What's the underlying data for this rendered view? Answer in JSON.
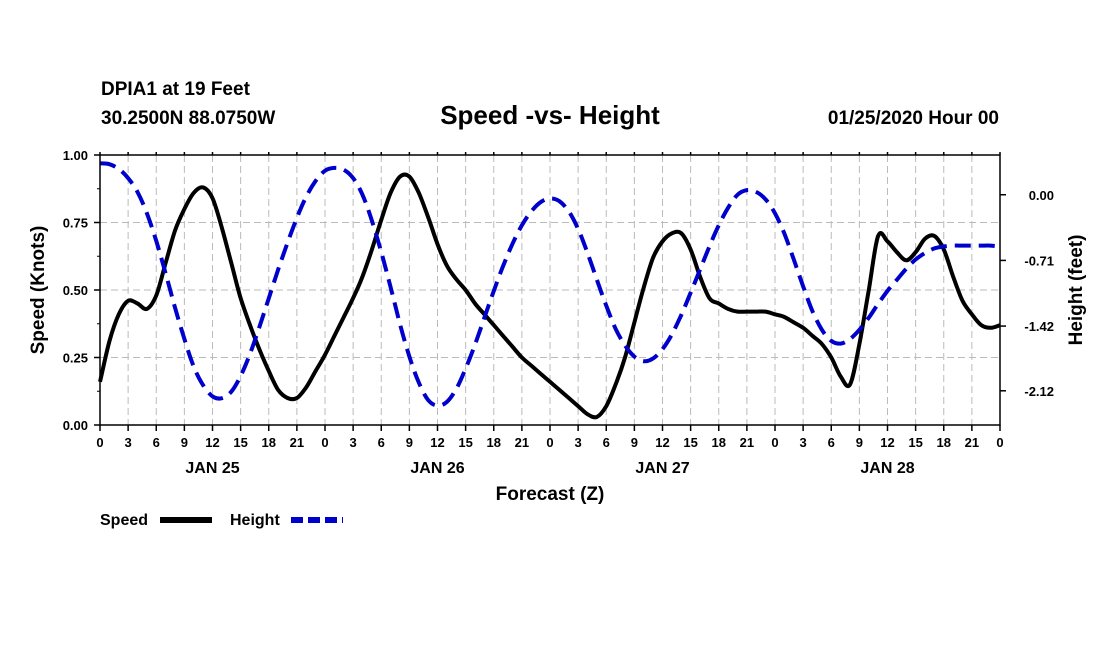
{
  "header": {
    "station": "DPIA1 at 19 Feet",
    "coords": "30.2500N 88.0750W",
    "datetime": "01/25/2020 Hour 00"
  },
  "chart_data": {
    "type": "line",
    "title": "Speed -vs- Height",
    "xlabel": "Forecast (Z)",
    "ylabel": "Speed (Knots)",
    "y2label": "Height (feet)",
    "xlim": [
      0,
      96
    ],
    "ylim": [
      0,
      1.0
    ],
    "y2lim": [
      -2.49,
      0.43
    ],
    "grid": true,
    "x_tick_labels": [
      "0",
      "3",
      "6",
      "9",
      "12",
      "15",
      "18",
      "21",
      "0",
      "3",
      "6",
      "9",
      "12",
      "15",
      "18",
      "21",
      "0",
      "3",
      "6",
      "9",
      "12",
      "15",
      "18",
      "21",
      "0",
      "3",
      "6",
      "9",
      "12",
      "15",
      "18",
      "21",
      "0"
    ],
    "y_ticks": [
      "0.00",
      "0.25",
      "0.50",
      "0.75",
      "1.00"
    ],
    "y2_ticks": [
      "0.00",
      "-0.71",
      "-1.42",
      "-2.12"
    ],
    "day_labels": [
      {
        "label": "JAN 25",
        "x": 12
      },
      {
        "label": "JAN 26",
        "x": 36
      },
      {
        "label": "JAN 27",
        "x": 60
      },
      {
        "label": "JAN 28",
        "x": 84
      }
    ],
    "legend": {
      "speed_label": "Speed",
      "height_label": "Height",
      "position": "bottom-left"
    },
    "series": [
      {
        "name": "Speed",
        "axis": "left",
        "color": "#000000",
        "style": "solid",
        "x": [
          0,
          1,
          2,
          3,
          4,
          5,
          6,
          7,
          8,
          9,
          10,
          11,
          12,
          13,
          14,
          15,
          16,
          17,
          18,
          19,
          20,
          21,
          22,
          23,
          24,
          25,
          26,
          27,
          28,
          29,
          30,
          31,
          32,
          33,
          34,
          35,
          36,
          37,
          38,
          39,
          40,
          41,
          42,
          43,
          44,
          45,
          46,
          47,
          48,
          49,
          50,
          51,
          52,
          53,
          54,
          55,
          56,
          57,
          58,
          59,
          60,
          61,
          62,
          63,
          64,
          65,
          66,
          67,
          68,
          69,
          70,
          71,
          72,
          73,
          74,
          75,
          76,
          77,
          78,
          79,
          80,
          81,
          82,
          83,
          84,
          85,
          86,
          87,
          88,
          89,
          90,
          91,
          92,
          93,
          94,
          95,
          96
        ],
        "y": [
          0.16,
          0.31,
          0.41,
          0.46,
          0.45,
          0.43,
          0.48,
          0.6,
          0.72,
          0.8,
          0.86,
          0.88,
          0.84,
          0.73,
          0.6,
          0.47,
          0.37,
          0.28,
          0.2,
          0.13,
          0.1,
          0.1,
          0.14,
          0.2,
          0.26,
          0.33,
          0.4,
          0.47,
          0.55,
          0.65,
          0.76,
          0.86,
          0.92,
          0.92,
          0.86,
          0.77,
          0.67,
          0.59,
          0.54,
          0.5,
          0.45,
          0.41,
          0.37,
          0.33,
          0.29,
          0.25,
          0.22,
          0.19,
          0.16,
          0.13,
          0.1,
          0.07,
          0.04,
          0.03,
          0.07,
          0.15,
          0.25,
          0.38,
          0.51,
          0.62,
          0.68,
          0.71,
          0.71,
          0.65,
          0.55,
          0.47,
          0.45,
          0.43,
          0.42,
          0.42,
          0.42,
          0.42,
          0.41,
          0.4,
          0.38,
          0.36,
          0.33,
          0.3,
          0.25,
          0.18,
          0.15,
          0.3,
          0.5,
          0.7,
          0.68,
          0.64,
          0.61,
          0.64,
          0.69,
          0.7,
          0.65,
          0.55,
          0.46,
          0.41,
          0.37,
          0.36,
          0.37
        ]
      },
      {
        "name": "Height",
        "axis": "right",
        "color": "#0000cc",
        "style": "dashed",
        "x": [
          0,
          1,
          2,
          3,
          4,
          5,
          6,
          7,
          8,
          9,
          10,
          11,
          12,
          13,
          14,
          15,
          16,
          17,
          18,
          19,
          20,
          21,
          22,
          23,
          24,
          25,
          26,
          27,
          28,
          29,
          30,
          31,
          32,
          33,
          34,
          35,
          36,
          37,
          38,
          39,
          40,
          41,
          42,
          43,
          44,
          45,
          46,
          47,
          48,
          49,
          50,
          51,
          52,
          53,
          54,
          55,
          56,
          57,
          58,
          59,
          60,
          61,
          62,
          63,
          64,
          65,
          66,
          67,
          68,
          69,
          70,
          71,
          72,
          73,
          74,
          75,
          76,
          77,
          78,
          79,
          80,
          81,
          82,
          83,
          84,
          85,
          86,
          87,
          88,
          89,
          90,
          91,
          92,
          93,
          94,
          95,
          96
        ],
        "y": [
          0.34,
          0.33,
          0.28,
          0.18,
          0.03,
          -0.2,
          -0.5,
          -0.85,
          -1.22,
          -1.56,
          -1.86,
          -2.06,
          -2.18,
          -2.2,
          -2.13,
          -1.96,
          -1.72,
          -1.43,
          -1.12,
          -0.81,
          -0.52,
          -0.25,
          -0.02,
          0.15,
          0.26,
          0.29,
          0.27,
          0.18,
          0.0,
          -0.28,
          -0.62,
          -1.0,
          -1.4,
          -1.75,
          -2.03,
          -2.22,
          -2.28,
          -2.24,
          -2.1,
          -1.88,
          -1.62,
          -1.33,
          -1.04,
          -0.77,
          -0.53,
          -0.33,
          -0.18,
          -0.08,
          -0.04,
          -0.07,
          -0.18,
          -0.37,
          -0.63,
          -0.92,
          -1.2,
          -1.45,
          -1.63,
          -1.75,
          -1.8,
          -1.77,
          -1.67,
          -1.51,
          -1.3,
          -1.06,
          -0.81,
          -0.56,
          -0.33,
          -0.14,
          0.0,
          0.05,
          0.03,
          -0.05,
          -0.2,
          -0.42,
          -0.7,
          -0.99,
          -1.26,
          -1.46,
          -1.58,
          -1.61,
          -1.56,
          -1.46,
          -1.33,
          -1.18,
          -1.04,
          -0.92,
          -0.8,
          -0.7,
          -0.63,
          -0.58,
          -0.56,
          -0.55,
          -0.55,
          -0.55,
          -0.55,
          -0.55,
          -0.56
        ]
      }
    ]
  }
}
